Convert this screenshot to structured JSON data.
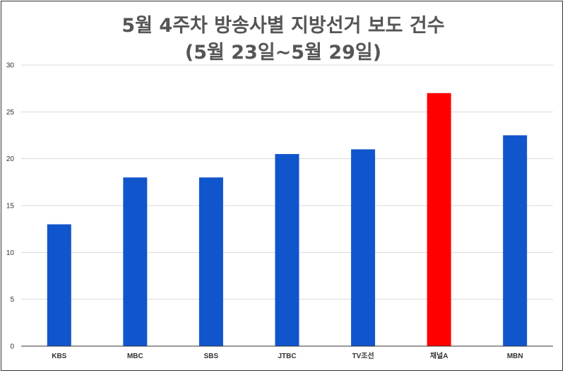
{
  "chart_data": {
    "type": "bar",
    "title": "5월 4주차 방송사별 지방선거 보도 건수",
    "subtitle": "(5월 23일~5월 29일)",
    "xlabel": "",
    "ylabel": "",
    "ylim": [
      0,
      30
    ],
    "yticks": [
      0,
      5,
      10,
      15,
      20,
      25,
      30
    ],
    "grid": true,
    "legend": "none",
    "categories": [
      "KBS",
      "MBC",
      "SBS",
      "JTBC",
      "TV조선",
      "채널A",
      "MBN"
    ],
    "values": [
      13,
      18,
      18,
      20.5,
      21,
      27,
      22.5
    ],
    "colors": [
      "#1155cc",
      "#1155cc",
      "#1155cc",
      "#1155cc",
      "#1155cc",
      "#ff0000",
      "#1155cc"
    ]
  }
}
